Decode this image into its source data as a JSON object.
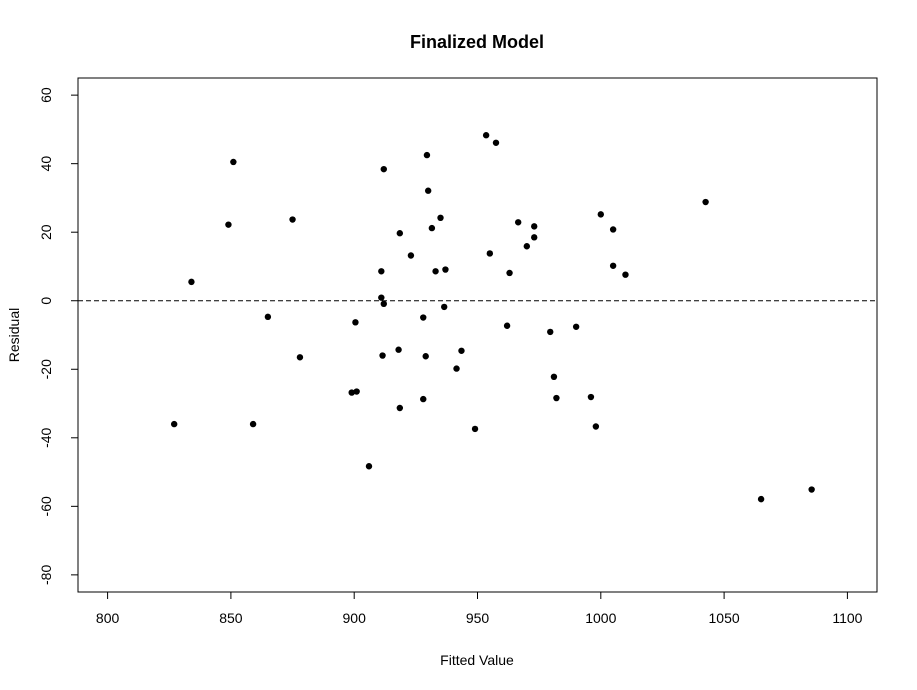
{
  "chart_data": {
    "type": "scatter",
    "title": "Finalized Model",
    "xlabel": "Fitted Value",
    "ylabel": "Residual",
    "xlim": [
      788,
      1112
    ],
    "ylim": [
      -85,
      65
    ],
    "x_ticks": [
      800,
      850,
      900,
      950,
      1000,
      1050,
      1100
    ],
    "y_ticks": [
      -80,
      -60,
      -40,
      -20,
      0,
      20,
      40,
      60
    ],
    "x_tick_labels": [
      "800",
      "850",
      "900",
      "950",
      "1000",
      "1050",
      "1100"
    ],
    "y_tick_labels": [
      "-80",
      "-60",
      "-40",
      "-20",
      "0",
      "20",
      "40",
      "60"
    ],
    "reference_line": {
      "y": 0,
      "style": "dashed"
    },
    "grid": false,
    "point_color": "#000000",
    "points": [
      {
        "x": 827,
        "y": -36
      },
      {
        "x": 834,
        "y": 5.5
      },
      {
        "x": 849,
        "y": 22.2
      },
      {
        "x": 851,
        "y": 40.5
      },
      {
        "x": 859,
        "y": -36
      },
      {
        "x": 865,
        "y": -4.7
      },
      {
        "x": 875,
        "y": 23.7
      },
      {
        "x": 878,
        "y": -16.5
      },
      {
        "x": 899,
        "y": -26.8
      },
      {
        "x": 901,
        "y": -26.5
      },
      {
        "x": 900.5,
        "y": -6.3
      },
      {
        "x": 906,
        "y": -48.3
      },
      {
        "x": 911,
        "y": 8.6
      },
      {
        "x": 911,
        "y": 0.9
      },
      {
        "x": 912,
        "y": -0.9
      },
      {
        "x": 911.5,
        "y": -16
      },
      {
        "x": 912,
        "y": 38.4
      },
      {
        "x": 918,
        "y": -14.3
      },
      {
        "x": 918.5,
        "y": 19.7
      },
      {
        "x": 918.5,
        "y": -31.3
      },
      {
        "x": 923,
        "y": 13.2
      },
      {
        "x": 928,
        "y": -4.9
      },
      {
        "x": 928,
        "y": -28.7
      },
      {
        "x": 929,
        "y": -16.2
      },
      {
        "x": 929.5,
        "y": 42.5
      },
      {
        "x": 930,
        "y": 32.1
      },
      {
        "x": 931.5,
        "y": 21.2
      },
      {
        "x": 933,
        "y": 8.6
      },
      {
        "x": 935,
        "y": 24.2
      },
      {
        "x": 936.5,
        "y": -1.8
      },
      {
        "x": 937,
        "y": 9.1
      },
      {
        "x": 941.5,
        "y": -19.8
      },
      {
        "x": 943.5,
        "y": -14.6
      },
      {
        "x": 949,
        "y": -37.4
      },
      {
        "x": 953.5,
        "y": 48.3
      },
      {
        "x": 955,
        "y": 13.8
      },
      {
        "x": 957.5,
        "y": 46.1
      },
      {
        "x": 962,
        "y": -7.3
      },
      {
        "x": 963,
        "y": 8.1
      },
      {
        "x": 966.5,
        "y": 22.9
      },
      {
        "x": 970,
        "y": 15.9
      },
      {
        "x": 973,
        "y": 21.7
      },
      {
        "x": 973,
        "y": 18.5
      },
      {
        "x": 979.5,
        "y": -9.1
      },
      {
        "x": 981,
        "y": -22.2
      },
      {
        "x": 982,
        "y": -28.4
      },
      {
        "x": 990,
        "y": -7.6
      },
      {
        "x": 996,
        "y": -28.1
      },
      {
        "x": 998,
        "y": -36.7
      },
      {
        "x": 1000,
        "y": 25.2
      },
      {
        "x": 1005,
        "y": 10.2
      },
      {
        "x": 1005,
        "y": 20.8
      },
      {
        "x": 1010,
        "y": 7.6
      },
      {
        "x": 1042.5,
        "y": 28.8
      },
      {
        "x": 1065,
        "y": -57.9
      },
      {
        "x": 1085.5,
        "y": -55.1
      }
    ]
  }
}
